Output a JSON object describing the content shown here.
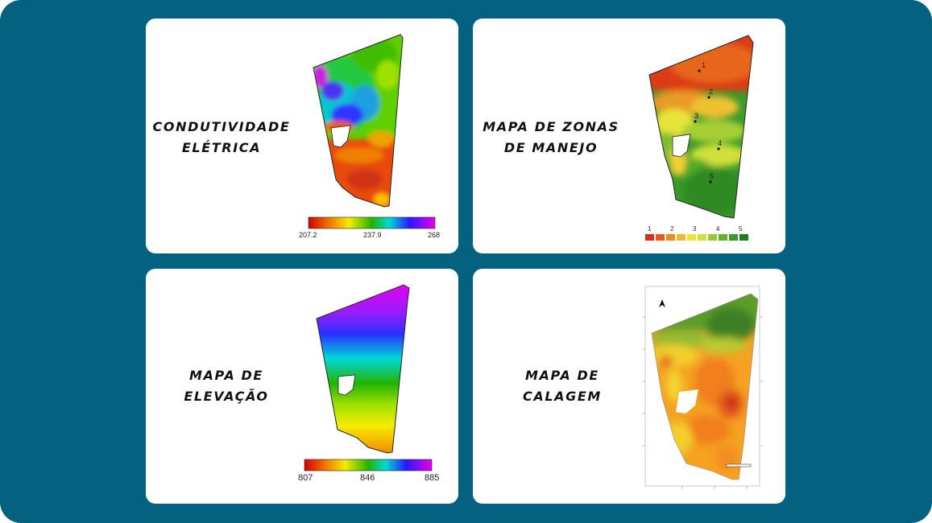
{
  "panels": {
    "condutividade": {
      "title_line1": "CONDUTIVIDADE",
      "title_line2": "ELÉTRICA",
      "scale": {
        "min": "207.2",
        "mid": "237.9",
        "max": "268"
      }
    },
    "zonas": {
      "title_line1": "MAPA DE ZONAS",
      "title_line2": "DE MANEJO",
      "zone_numbers": [
        "1",
        "2",
        "3",
        "4",
        "5"
      ],
      "legend_ticks": [
        "1",
        "2",
        "3",
        "4",
        "5"
      ]
    },
    "elevacao": {
      "title_line1": "MAPA DE",
      "title_line2": "ELEVAÇÃO",
      "scale": {
        "min": "807",
        "mid": "846",
        "max": "885"
      }
    },
    "calagem": {
      "title_line1": "MAPA DE",
      "title_line2": "CALAGEM"
    }
  },
  "colors": {
    "background": "#046180",
    "card": "#ffffff",
    "title_text": "#111111"
  },
  "icons": {
    "north_arrow": "north-arrow-icon"
  }
}
